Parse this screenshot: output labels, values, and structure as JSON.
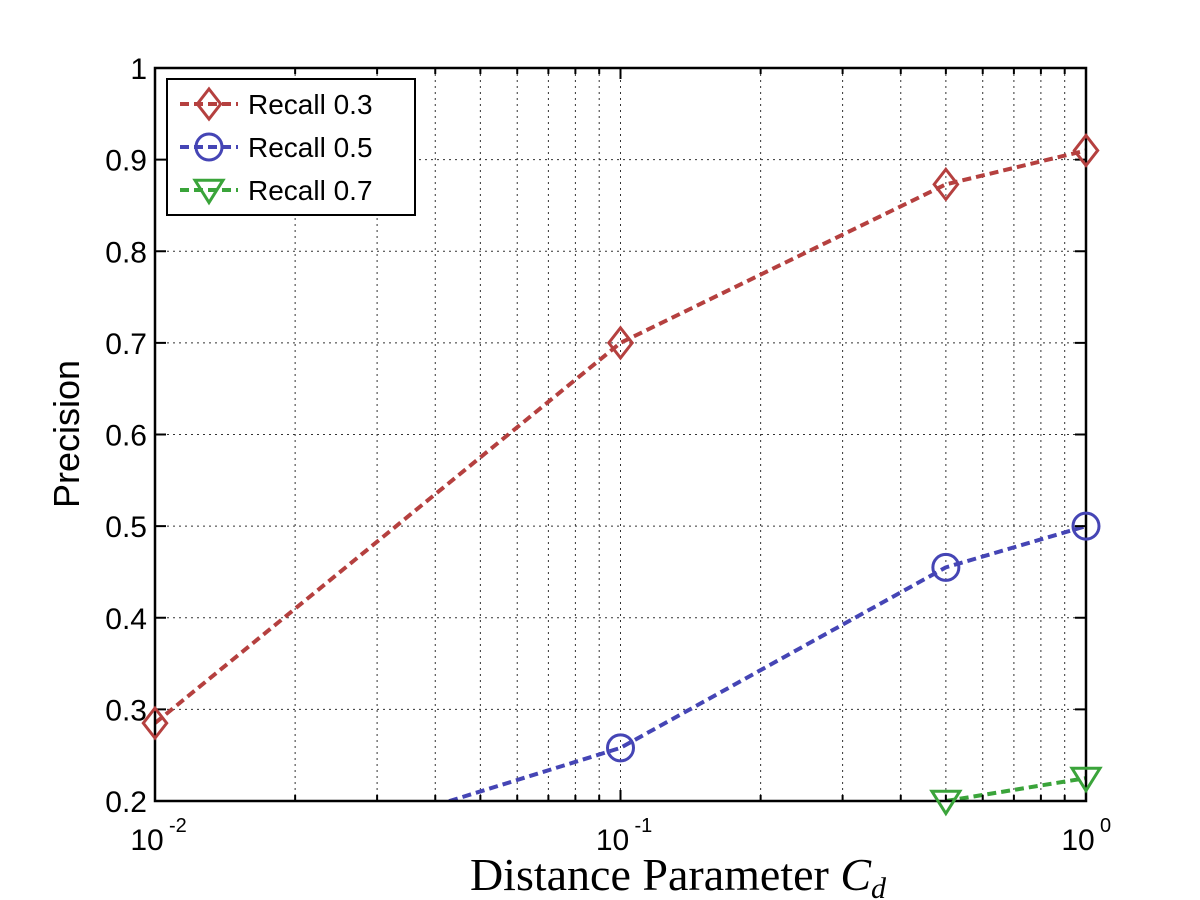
{
  "chart_data": {
    "type": "line",
    "xscale": "log",
    "xlim": [
      0.01,
      1
    ],
    "ylim": [
      0.2,
      1
    ],
    "grid": true,
    "legend_position": "top-left",
    "xlabel_text": "Distance Parameter ",
    "xlabel_symbol": "C",
    "xlabel_subscript": "d",
    "ylabel": "Precision",
    "x_ticks": [
      {
        "value": 0.01,
        "base": "10",
        "exp": "-2"
      },
      {
        "value": 0.1,
        "base": "10",
        "exp": "-1"
      },
      {
        "value": 1,
        "base": "10",
        "exp": "0"
      }
    ],
    "y_ticks": [
      {
        "value": 0.2,
        "label": "0.2"
      },
      {
        "value": 0.3,
        "label": "0.3"
      },
      {
        "value": 0.4,
        "label": "0.4"
      },
      {
        "value": 0.5,
        "label": "0.5"
      },
      {
        "value": 0.6,
        "label": "0.6"
      },
      {
        "value": 0.7,
        "label": "0.7"
      },
      {
        "value": 0.8,
        "label": "0.8"
      },
      {
        "value": 0.9,
        "label": "0.9"
      },
      {
        "value": 1,
        "label": "1"
      }
    ],
    "series": [
      {
        "name": "Recall 0.3",
        "color": "#b5403f",
        "marker": "diamond",
        "x": [
          0.01,
          0.1,
          0.5,
          1
        ],
        "y": [
          0.285,
          0.7,
          0.873,
          0.91
        ]
      },
      {
        "name": "Recall 0.5",
        "color": "#4545b5",
        "marker": "circle",
        "x": [
          0.01,
          0.1,
          0.5,
          1
        ],
        "y": [
          0.1,
          0.258,
          0.455,
          0.5
        ]
      },
      {
        "name": "Recall 0.7",
        "color": "#3aa43a",
        "marker": "triangle-down",
        "x": [
          0.5,
          1
        ],
        "y": [
          0.2,
          0.225
        ]
      }
    ]
  }
}
